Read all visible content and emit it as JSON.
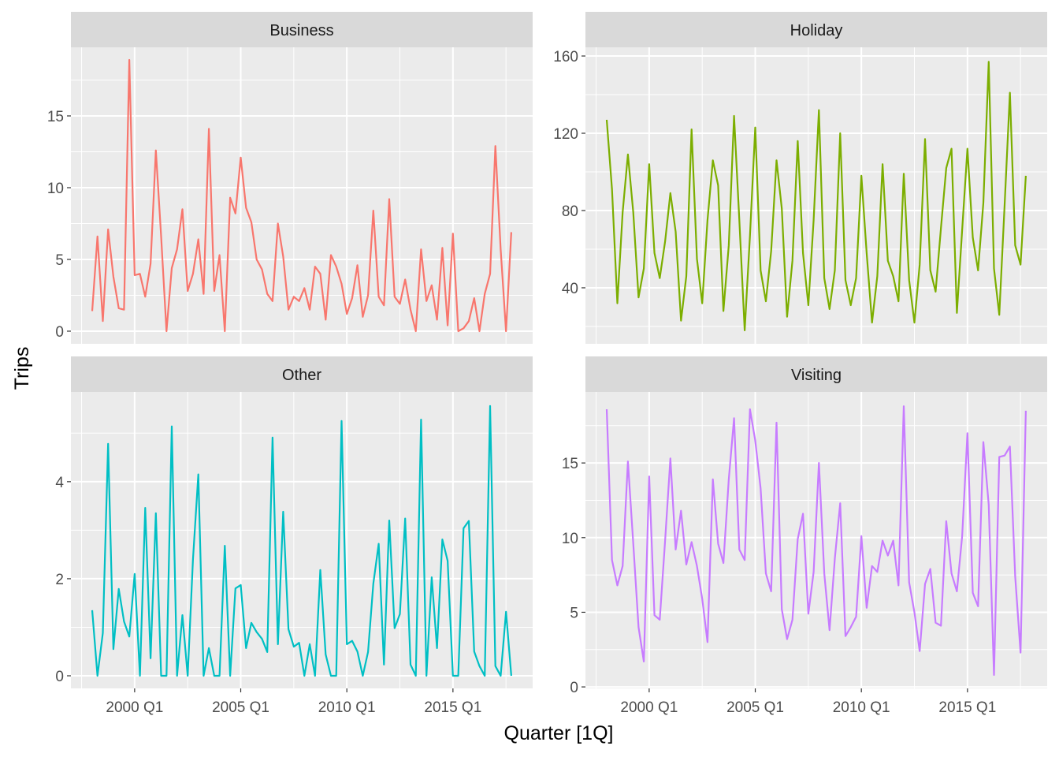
{
  "chart_data": {
    "type": "line",
    "layout": "facet-grid-2x2",
    "xlabel": "Quarter [1Q]",
    "ylabel": "Trips",
    "x_start": "1998 Q1",
    "x_end": "2017 Q4",
    "x_ticks": [
      "2000 Q1",
      "2005 Q1",
      "2010 Q1",
      "2015 Q1"
    ],
    "grid": true,
    "panel_background": "#EBEBEB",
    "strip_background": "#D9D9D9",
    "facets": [
      {
        "name": "Business",
        "color": "#F8766D",
        "y_ticks": [
          0,
          5,
          10,
          15
        ],
        "ylim": [
          -0.88,
          19.78
        ],
        "values": [
          1.4,
          6.6,
          0.7,
          7.1,
          3.8,
          1.6,
          1.5,
          18.9,
          3.9,
          4.0,
          2.4,
          4.7,
          12.6,
          6.6,
          0,
          4.4,
          5.7,
          8.5,
          2.8,
          4.0,
          6.4,
          2.6,
          14.1,
          2.8,
          5.3,
          0,
          9.3,
          8.2,
          12.1,
          8.6,
          7.6,
          5.0,
          4.3,
          2.6,
          2.1,
          7.5,
          5.2,
          1.5,
          2.4,
          2.1,
          3.0,
          1.5,
          4.5,
          4.0,
          0.8,
          5.3,
          4.5,
          3.3,
          1.2,
          2.3,
          4.6,
          1.0,
          2.5,
          8.4,
          2.4,
          1.8,
          9.2,
          2.4,
          1.9,
          3.6,
          1.5,
          0,
          5.7,
          2.1,
          3.2,
          0.8,
          5.8,
          0.4,
          6.8,
          0,
          0.2,
          0.7,
          2.3,
          0,
          2.6,
          4.0,
          12.9,
          5.7,
          0,
          6.9
        ]
      },
      {
        "name": "Holiday",
        "color": "#7CAE00",
        "y_ticks": [
          40,
          80,
          120,
          160
        ],
        "ylim": [
          11.0,
          164.5
        ],
        "values": [
          127,
          91,
          32,
          79,
          109,
          79,
          35,
          50,
          104,
          58,
          45,
          64,
          89,
          69,
          23,
          46,
          122,
          55,
          32,
          75,
          106,
          93,
          28,
          62,
          129,
          75,
          18,
          67,
          123,
          49,
          33,
          59,
          106,
          81,
          25,
          54,
          116,
          58,
          31,
          75,
          132,
          45,
          29,
          49,
          120,
          44,
          31,
          45,
          98,
          58,
          22,
          46,
          104,
          54,
          46,
          33,
          99,
          44,
          22,
          52,
          117,
          49,
          38,
          71,
          102,
          112,
          27,
          70,
          112,
          66,
          49,
          84,
          157,
          50,
          26,
          83,
          141,
          62,
          52,
          98
        ]
      },
      {
        "name": "Other",
        "color": "#00BFC4",
        "y_ticks": [
          0,
          2,
          4
        ],
        "ylim": [
          -0.26,
          5.85
        ],
        "values": [
          1.35,
          0,
          0.88,
          4.78,
          0.55,
          1.79,
          1.12,
          0.81,
          2.1,
          0,
          3.46,
          0.36,
          3.35,
          0,
          0,
          5.14,
          0,
          1.25,
          0,
          2.4,
          4.15,
          0,
          0.57,
          0,
          0,
          2.68,
          0,
          1.8,
          1.87,
          0.57,
          1.09,
          0.9,
          0.76,
          0.49,
          4.91,
          0.65,
          3.38,
          0.96,
          0.6,
          0.68,
          0,
          0.65,
          0,
          2.18,
          0.44,
          0,
          0,
          5.25,
          0.65,
          0.72,
          0.5,
          0,
          0.49,
          1.9,
          2.72,
          0.23,
          3.2,
          0.98,
          1.27,
          3.24,
          0.23,
          0,
          5.28,
          0,
          2.03,
          0.57,
          2.81,
          2.37,
          0,
          0,
          3.04,
          3.19,
          0.5,
          0.2,
          0,
          5.56,
          0.2,
          0,
          1.32,
          0
        ]
      },
      {
        "name": "Visiting",
        "color": "#C77CFF",
        "y_ticks": [
          0,
          5,
          10,
          15
        ],
        "ylim": [
          -0.1,
          19.76
        ],
        "values": [
          18.6,
          8.5,
          6.8,
          8.1,
          15.1,
          9.6,
          4.0,
          1.7,
          14.1,
          4.8,
          4.5,
          9.8,
          15.3,
          9.2,
          11.8,
          8.2,
          9.7,
          8.1,
          5.9,
          3.0,
          13.9,
          9.6,
          8.3,
          13.9,
          18.0,
          9.2,
          8.5,
          18.6,
          16.5,
          13.3,
          7.6,
          6.4,
          17.7,
          5.2,
          3.2,
          4.5,
          9.9,
          11.6,
          4.9,
          7.7,
          15.0,
          7.6,
          3.8,
          8.6,
          12.3,
          3.4,
          4.0,
          4.7,
          10.1,
          5.3,
          8.1,
          7.7,
          9.8,
          8.8,
          9.8,
          6.8,
          18.8,
          7.0,
          5.0,
          2.4,
          6.9,
          7.9,
          4.3,
          4.1,
          11.1,
          7.6,
          6.4,
          10.1,
          17.0,
          6.3,
          5.4,
          16.4,
          12.2,
          0.8,
          15.4,
          15.5,
          16.1,
          7.4,
          2.3,
          18.5
        ]
      }
    ]
  }
}
